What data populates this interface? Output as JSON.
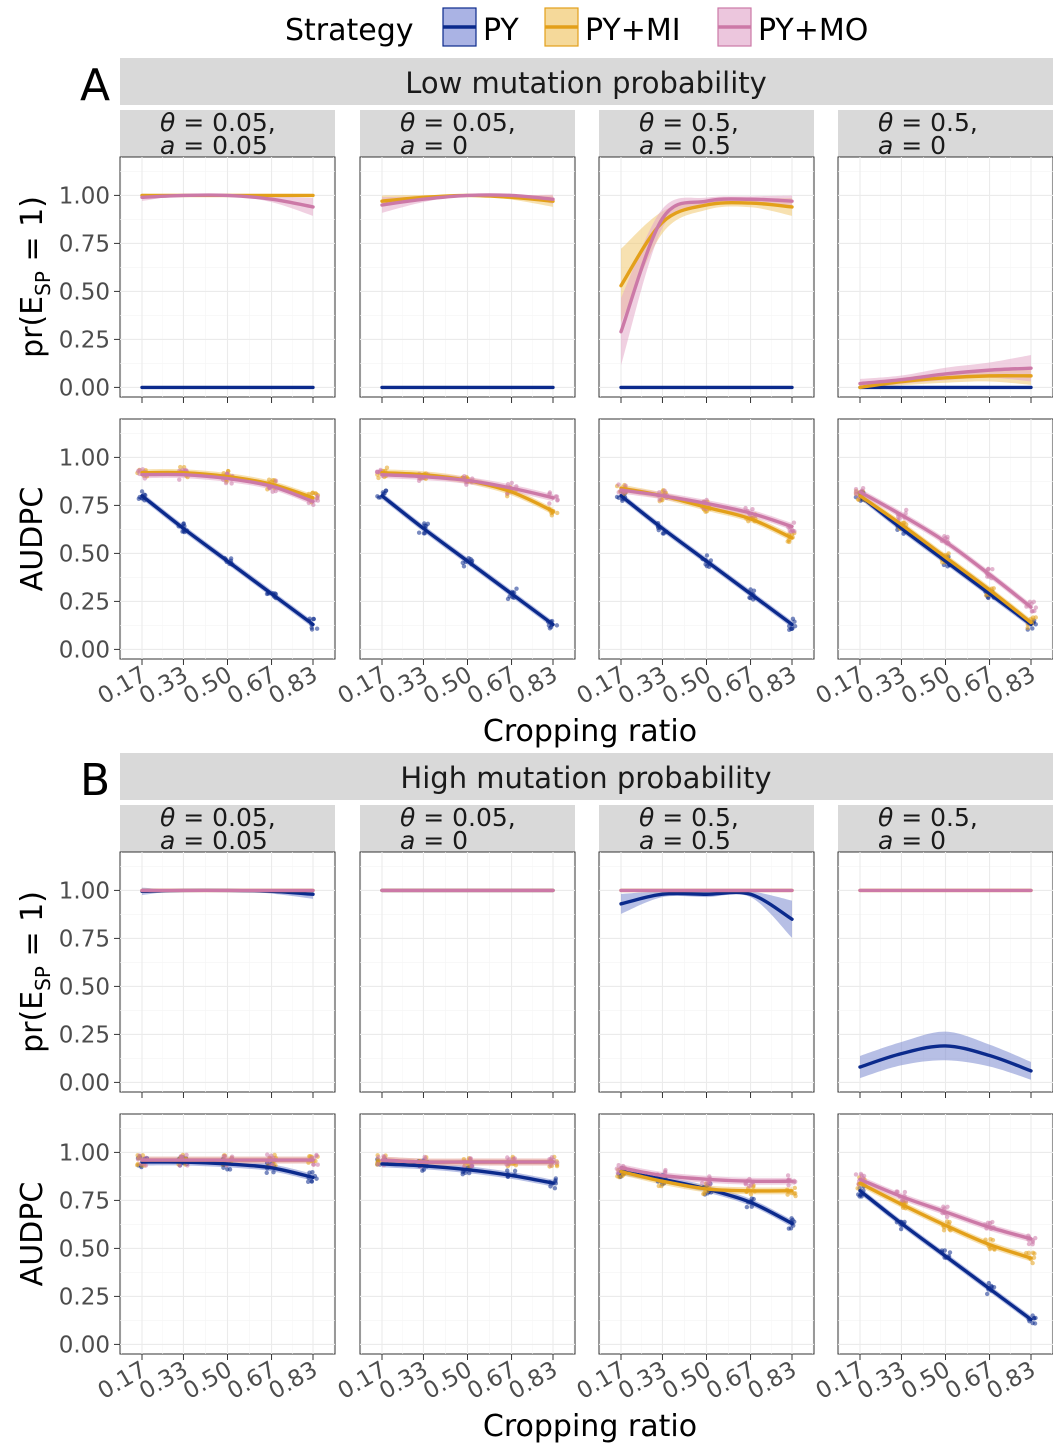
{
  "legend": {
    "title": "Strategy",
    "items": [
      {
        "label": "PY",
        "color": "#0b2a8c"
      },
      {
        "label": "PY+MI",
        "color": "#e3a01a"
      },
      {
        "label": "PY+MO",
        "color": "#cc79a7"
      }
    ]
  },
  "x_axis_title": "Cropping ratio",
  "y_axis_titles": {
    "prob_prefix": "pr(E",
    "prob_sub": "SP",
    "prob_suffix": " = 1)",
    "audpc": "AUDPC"
  },
  "theta_symbol": "θ",
  "a_symbol": "a",
  "chart_data": [
    {
      "tag": "A",
      "title": "Low mutation probability",
      "type": "line",
      "x": [
        0.17,
        0.33,
        0.5,
        0.67,
        0.83
      ],
      "x_tick_labels": [
        "0.17",
        "0.33",
        "0.50",
        "0.67",
        "0.83"
      ],
      "y_ticks": [
        0,
        0.25,
        0.5,
        0.75,
        1.0
      ],
      "y_tick_labels": [
        "0.00",
        "0.25",
        "0.50",
        "0.75",
        "1.00"
      ],
      "ylim_prob": [
        -0.05,
        1.2
      ],
      "ylim_audpc": [
        -0.05,
        1.2
      ],
      "facets": [
        {
          "theta": "0.05",
          "a": "0.05",
          "prob": [
            {
              "name": "PY",
              "values": [
                0,
                0,
                0,
                0,
                0
              ]
            },
            {
              "name": "PY+MI",
              "values": [
                1.0,
                1.0,
                1.0,
                1.0,
                1.0
              ]
            },
            {
              "name": "PY+MO",
              "values": [
                0.99,
                1.0,
                1.0,
                0.98,
                0.94
              ]
            }
          ],
          "audpc": [
            {
              "name": "PY",
              "values": [
                0.8,
                0.63,
                0.46,
                0.29,
                0.13
              ]
            },
            {
              "name": "PY+MI",
              "values": [
                0.92,
                0.92,
                0.9,
                0.86,
                0.79
              ]
            },
            {
              "name": "PY+MO",
              "values": [
                0.91,
                0.91,
                0.89,
                0.85,
                0.77
              ]
            }
          ]
        },
        {
          "theta": "0.05",
          "a": "0",
          "prob": [
            {
              "name": "PY",
              "values": [
                0,
                0,
                0,
                0,
                0
              ]
            },
            {
              "name": "PY+MI",
              "values": [
                0.97,
                0.99,
                1.0,
                0.99,
                0.97
              ]
            },
            {
              "name": "PY+MO",
              "values": [
                0.95,
                0.98,
                1.0,
                1.0,
                0.98
              ]
            }
          ],
          "audpc": [
            {
              "name": "PY",
              "values": [
                0.8,
                0.63,
                0.46,
                0.29,
                0.13
              ]
            },
            {
              "name": "PY+MI",
              "values": [
                0.92,
                0.91,
                0.88,
                0.82,
                0.72
              ]
            },
            {
              "name": "PY+MO",
              "values": [
                0.91,
                0.9,
                0.88,
                0.84,
                0.79
              ]
            }
          ]
        },
        {
          "theta": "0.5",
          "a": "0.5",
          "prob": [
            {
              "name": "PY",
              "values": [
                0,
                0,
                0,
                0,
                0
              ]
            },
            {
              "name": "PY+MI",
              "values": [
                0.53,
                0.86,
                0.95,
                0.96,
                0.94
              ]
            },
            {
              "name": "PY+MO",
              "values": [
                0.29,
                0.88,
                0.97,
                0.98,
                0.97
              ]
            }
          ],
          "audpc": [
            {
              "name": "PY",
              "values": [
                0.8,
                0.63,
                0.46,
                0.29,
                0.13
              ]
            },
            {
              "name": "PY+MI",
              "values": [
                0.84,
                0.8,
                0.74,
                0.68,
                0.58
              ]
            },
            {
              "name": "PY+MO",
              "values": [
                0.83,
                0.8,
                0.76,
                0.71,
                0.64
              ]
            }
          ]
        },
        {
          "theta": "0.5",
          "a": "0",
          "prob": [
            {
              "name": "PY",
              "values": [
                0,
                0,
                0,
                0,
                0
              ]
            },
            {
              "name": "PY+MI",
              "values": [
                0.0,
                0.03,
                0.05,
                0.06,
                0.06
              ]
            },
            {
              "name": "PY+MO",
              "values": [
                0.02,
                0.04,
                0.07,
                0.09,
                0.1
              ]
            }
          ],
          "audpc": [
            {
              "name": "PY",
              "values": [
                0.8,
                0.63,
                0.46,
                0.29,
                0.13
              ]
            },
            {
              "name": "PY+MI",
              "values": [
                0.8,
                0.65,
                0.48,
                0.31,
                0.14
              ]
            },
            {
              "name": "PY+MO",
              "values": [
                0.82,
                0.7,
                0.56,
                0.39,
                0.22
              ]
            }
          ]
        }
      ]
    },
    {
      "tag": "B",
      "title": "High mutation probability",
      "type": "line",
      "x": [
        0.17,
        0.33,
        0.5,
        0.67,
        0.83
      ],
      "x_tick_labels": [
        "0.17",
        "0.33",
        "0.50",
        "0.67",
        "0.83"
      ],
      "y_ticks": [
        0,
        0.25,
        0.5,
        0.75,
        1.0
      ],
      "y_tick_labels": [
        "0.00",
        "0.25",
        "0.50",
        "0.75",
        "1.00"
      ],
      "ylim_prob": [
        -0.05,
        1.2
      ],
      "ylim_audpc": [
        -0.05,
        1.2
      ],
      "facets": [
        {
          "theta": "0.05",
          "a": "0.05",
          "prob": [
            {
              "name": "PY",
              "values": [
                0.995,
                1.0,
                1.0,
                0.995,
                0.98
              ]
            },
            {
              "name": "PY+MI",
              "values": [
                1.0,
                1.0,
                1.0,
                1.0,
                1.0
              ]
            },
            {
              "name": "PY+MO",
              "values": [
                1.0,
                1.0,
                1.0,
                1.0,
                1.0
              ]
            }
          ],
          "audpc": [
            {
              "name": "PY",
              "values": [
                0.95,
                0.95,
                0.94,
                0.92,
                0.87
              ]
            },
            {
              "name": "PY+MI",
              "values": [
                0.96,
                0.96,
                0.96,
                0.96,
                0.96
              ]
            },
            {
              "name": "PY+MO",
              "values": [
                0.96,
                0.96,
                0.96,
                0.96,
                0.96
              ]
            }
          ]
        },
        {
          "theta": "0.05",
          "a": "0",
          "prob": [
            {
              "name": "PY",
              "values": [
                1.0,
                1.0,
                1.0,
                1.0,
                1.0
              ]
            },
            {
              "name": "PY+MI",
              "values": [
                1.0,
                1.0,
                1.0,
                1.0,
                1.0
              ]
            },
            {
              "name": "PY+MO",
              "values": [
                1.0,
                1.0,
                1.0,
                1.0,
                1.0
              ]
            }
          ],
          "audpc": [
            {
              "name": "PY",
              "values": [
                0.94,
                0.93,
                0.91,
                0.88,
                0.84
              ]
            },
            {
              "name": "PY+MI",
              "values": [
                0.96,
                0.95,
                0.95,
                0.95,
                0.95
              ]
            },
            {
              "name": "PY+MO",
              "values": [
                0.96,
                0.95,
                0.95,
                0.95,
                0.95
              ]
            }
          ]
        },
        {
          "theta": "0.5",
          "a": "0.5",
          "prob": [
            {
              "name": "PY",
              "values": [
                0.93,
                0.98,
                0.98,
                0.98,
                0.85
              ]
            },
            {
              "name": "PY+MI",
              "values": [
                1.0,
                1.0,
                1.0,
                1.0,
                1.0
              ]
            },
            {
              "name": "PY+MO",
              "values": [
                1.0,
                1.0,
                1.0,
                1.0,
                1.0
              ]
            }
          ],
          "audpc": [
            {
              "name": "PY",
              "values": [
                0.9,
                0.86,
                0.81,
                0.74,
                0.63
              ]
            },
            {
              "name": "PY+MI",
              "values": [
                0.9,
                0.85,
                0.81,
                0.8,
                0.8
              ]
            },
            {
              "name": "PY+MO",
              "values": [
                0.92,
                0.88,
                0.86,
                0.85,
                0.85
              ]
            }
          ]
        },
        {
          "theta": "0.5",
          "a": "0",
          "prob": [
            {
              "name": "PY",
              "values": [
                0.08,
                0.15,
                0.19,
                0.14,
                0.06
              ]
            },
            {
              "name": "PY+MI",
              "values": [
                1.0,
                1.0,
                1.0,
                1.0,
                1.0
              ]
            },
            {
              "name": "PY+MO",
              "values": [
                1.0,
                1.0,
                1.0,
                1.0,
                1.0
              ]
            }
          ],
          "audpc": [
            {
              "name": "PY",
              "values": [
                0.8,
                0.63,
                0.46,
                0.29,
                0.13
              ]
            },
            {
              "name": "PY+MI",
              "values": [
                0.84,
                0.73,
                0.62,
                0.52,
                0.45
              ]
            },
            {
              "name": "PY+MO",
              "values": [
                0.86,
                0.77,
                0.69,
                0.61,
                0.55
              ]
            }
          ]
        }
      ]
    }
  ]
}
